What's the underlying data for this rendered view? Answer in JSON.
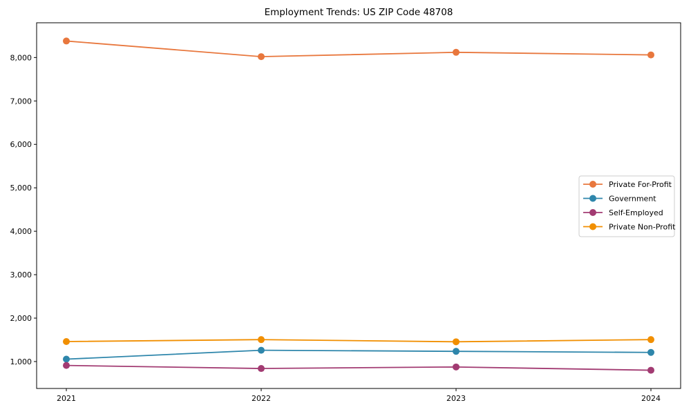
{
  "chart_data": {
    "type": "line",
    "title": "Employment Trends: US ZIP Code 48708",
    "categories": [
      "2021",
      "2022",
      "2023",
      "2024"
    ],
    "series": [
      {
        "name": "Private For-Profit",
        "color": "#E8773D",
        "values": [
          8380,
          8020,
          8120,
          8060
        ]
      },
      {
        "name": "Government",
        "color": "#2E86AB",
        "values": [
          1055,
          1260,
          1235,
          1210
        ]
      },
      {
        "name": "Self-Employed",
        "color": "#A23B72",
        "values": [
          910,
          840,
          875,
          800
        ]
      },
      {
        "name": "Private Non-Profit",
        "color": "#F18F01",
        "values": [
          1460,
          1505,
          1455,
          1505
        ]
      }
    ],
    "xlabel": "",
    "ylabel": "",
    "ylim": [
      380,
      8800
    ],
    "yticks": [
      1000,
      2000,
      3000,
      4000,
      5000,
      6000,
      7000,
      8000
    ],
    "ytick_labels": [
      "1,000",
      "2,000",
      "3,000",
      "4,000",
      "5,000",
      "6,000",
      "7,000",
      "8,000"
    ],
    "grid": false,
    "legend_position": "center right",
    "marker": "circle",
    "colors": {
      "axis": "#000000",
      "text": "#000000",
      "background": "#FFFFFF",
      "legend_border": "#CCCCCC",
      "legend_fill": "#FFFFFF"
    }
  }
}
